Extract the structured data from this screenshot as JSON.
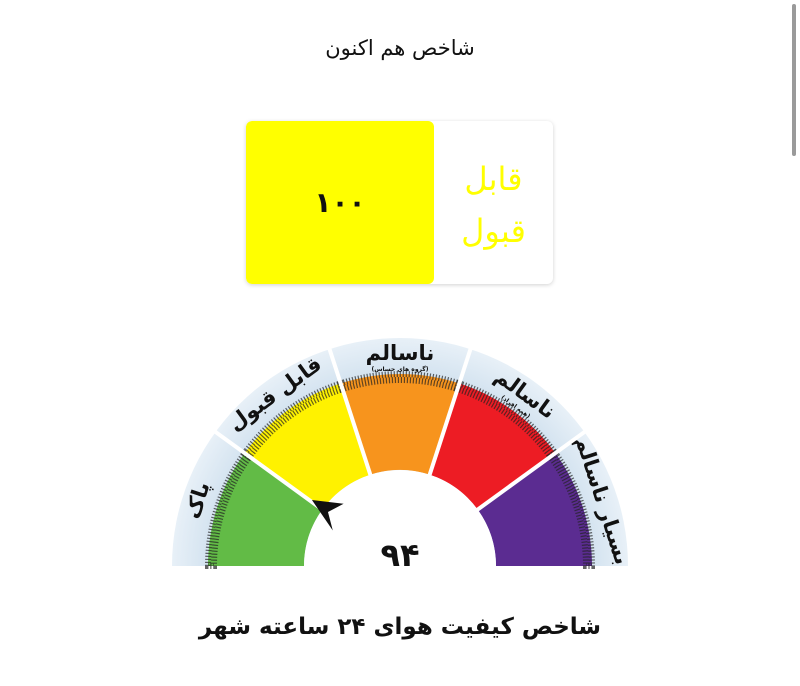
{
  "header": {
    "title": "شاخص هم اکنون"
  },
  "current": {
    "value": "۱۰۰",
    "status": "قابل قبول",
    "status_color": "#ffff00"
  },
  "gauge": {
    "value": "۹۴",
    "value_number": 94,
    "segments": [
      {
        "label": "پاک",
        "sub": "",
        "color": "#62bb46"
      },
      {
        "label": "قابل قبول",
        "sub": "",
        "color": "#fff200"
      },
      {
        "label": "ناسالم",
        "sub": "(گروه های حساس)",
        "color": "#f7941d"
      },
      {
        "label": "ناسالم",
        "sub": "(همه افراد)",
        "color": "#ed1c24"
      },
      {
        "label": "بسیار ناسالم",
        "sub": "",
        "color": "#5b2c91"
      }
    ]
  },
  "footer": {
    "title": "شاخص کیفیت هوای ۲۴ ساعته شهر"
  }
}
